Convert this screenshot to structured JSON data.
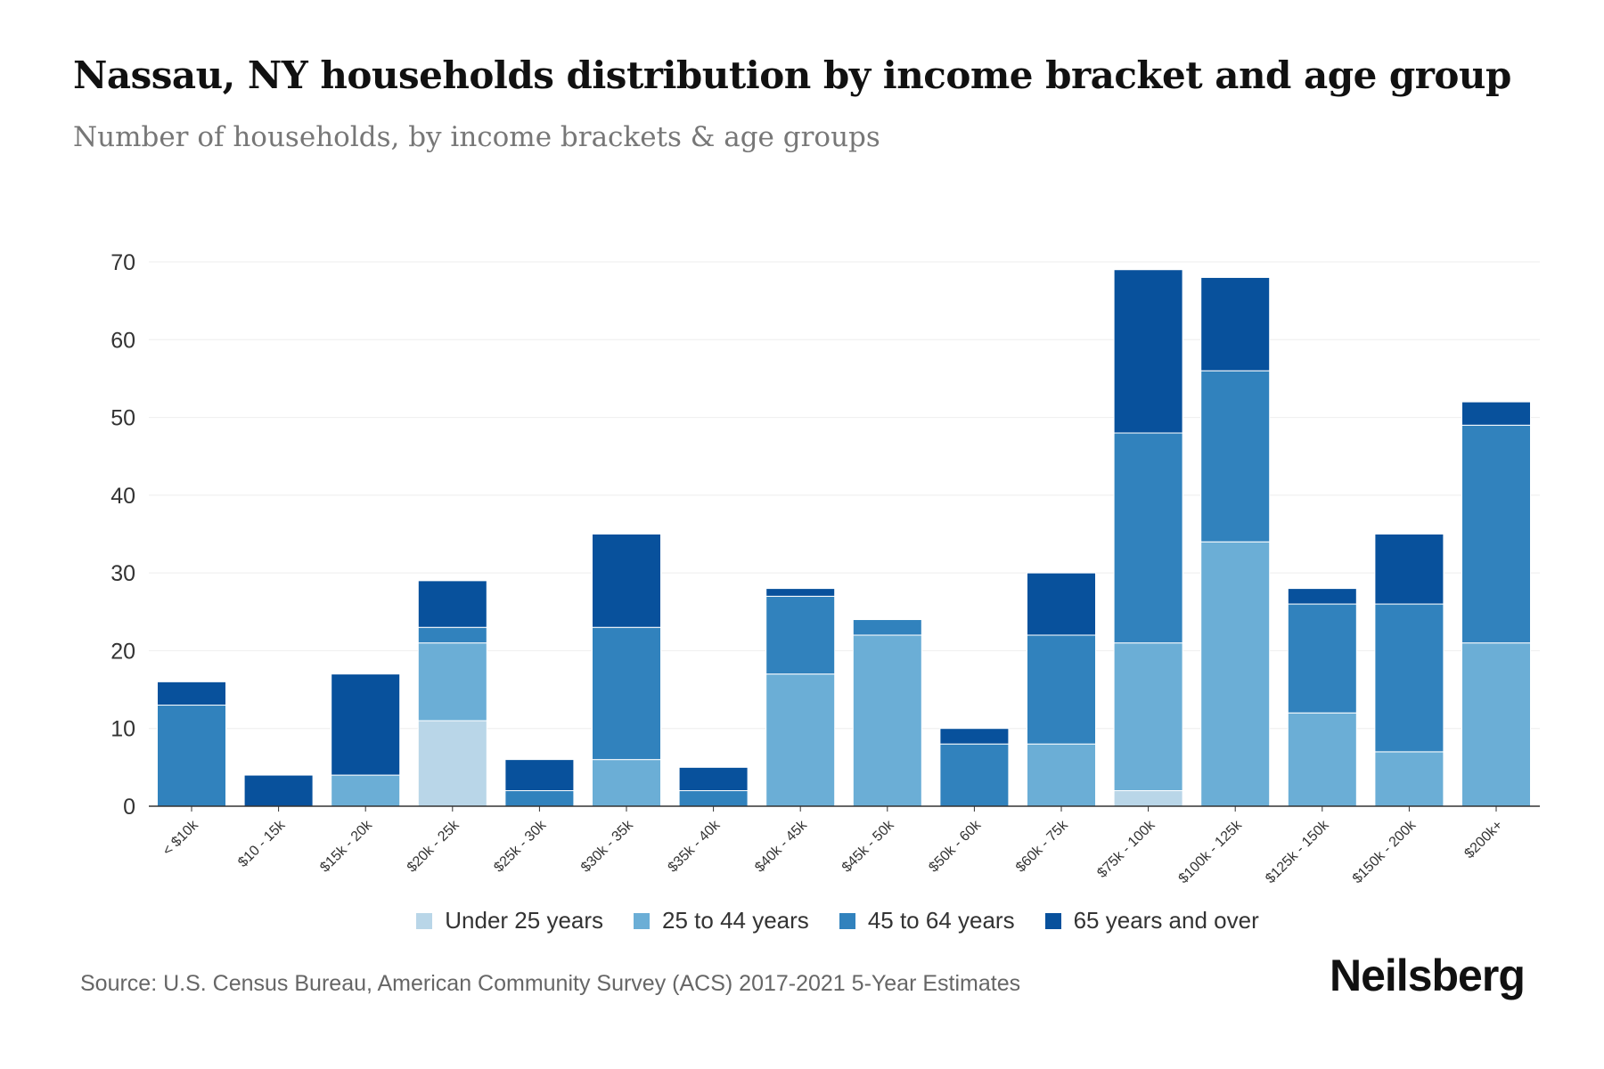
{
  "title": "Nassau, NY households distribution by income bracket and age group",
  "subtitle": "Number of households, by income brackets & age groups",
  "source": "Source: U.S. Census Bureau, American Community Survey (ACS) 2017-2021 5-Year Estimates",
  "logo": "Neilsberg",
  "chart_data": {
    "type": "bar",
    "stacked": true,
    "title": "Nassau, NY households distribution by income bracket and age group",
    "xlabel": "",
    "ylabel": "",
    "ylim": [
      0,
      70
    ],
    "yticks": [
      0,
      10,
      20,
      30,
      40,
      50,
      60,
      70
    ],
    "grid": true,
    "legend_position": "bottom",
    "categories": [
      "< $10k",
      "$10 - 15k",
      "$15k - 20k",
      "$20k - 25k",
      "$25k - 30k",
      "$30k - 35k",
      "$35k - 40k",
      "$40k - 45k",
      "$45k - 50k",
      "$50k - 60k",
      "$60k - 75k",
      "$75k - 100k",
      "$100k - 125k",
      "$125k - 150k",
      "$150k - 200k",
      "$200k+"
    ],
    "series": [
      {
        "name": "Under 25 years",
        "color": "#b9d6e8",
        "values": [
          0,
          0,
          0,
          11,
          0,
          0,
          0,
          0,
          0,
          0,
          0,
          2,
          0,
          0,
          0,
          0
        ]
      },
      {
        "name": "25 to 44 years",
        "color": "#6baed6",
        "values": [
          0,
          0,
          4,
          10,
          0,
          6,
          0,
          17,
          22,
          0,
          8,
          19,
          34,
          12,
          7,
          21
        ]
      },
      {
        "name": "45 to 64 years",
        "color": "#3182bd",
        "values": [
          13,
          0,
          0,
          2,
          2,
          17,
          2,
          10,
          2,
          8,
          14,
          27,
          22,
          14,
          19,
          28
        ]
      },
      {
        "name": "65 years and over",
        "color": "#08519c",
        "values": [
          3,
          4,
          13,
          6,
          4,
          12,
          3,
          1,
          0,
          2,
          8,
          21,
          12,
          2,
          9,
          3
        ]
      }
    ]
  }
}
